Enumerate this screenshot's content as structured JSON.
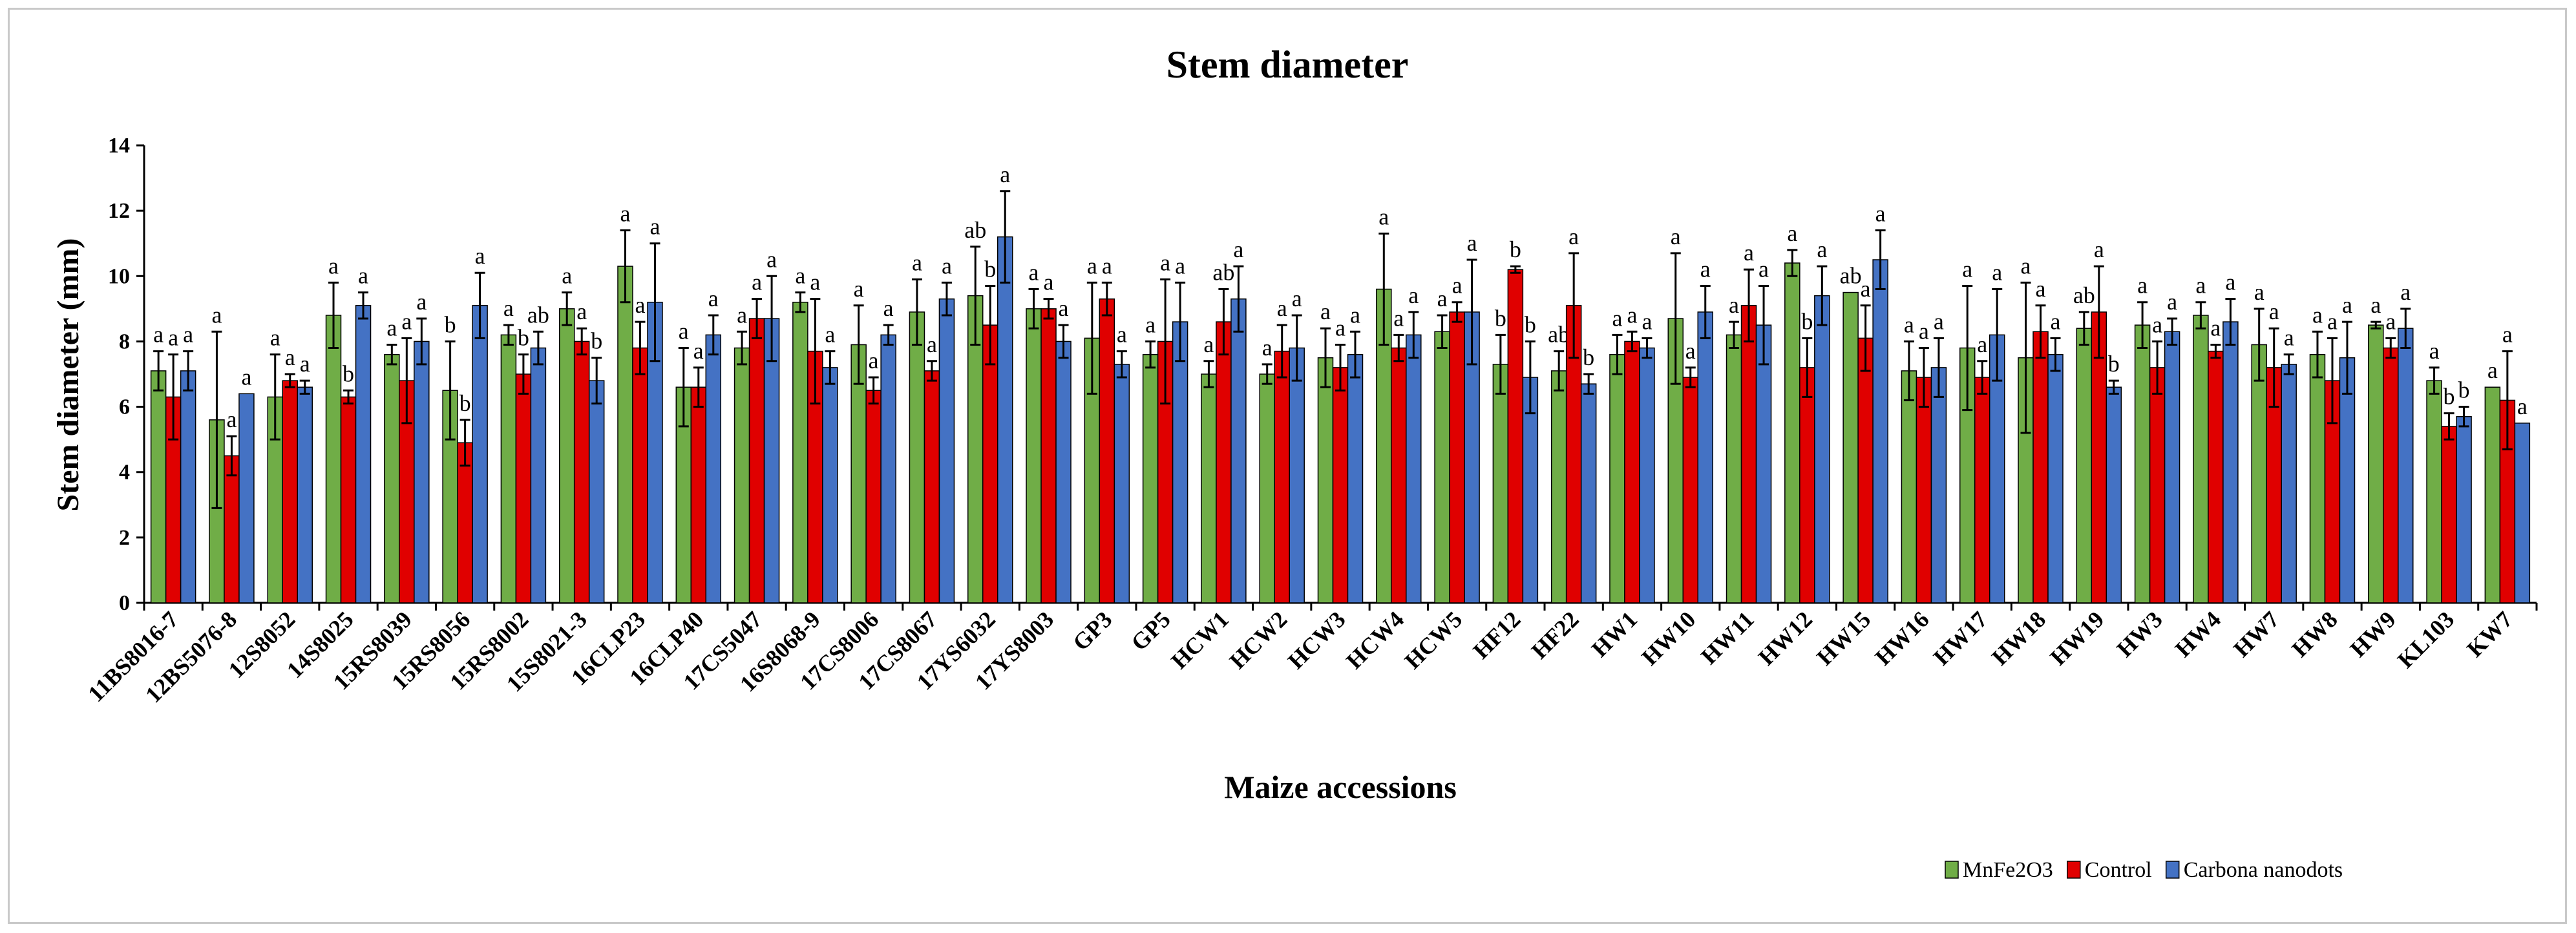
{
  "chart_data": {
    "type": "bar",
    "title": "Stem diameter",
    "xlabel": "Maize accessions",
    "ylabel": "Stem diameter (mm)",
    "ylim": [
      0,
      14
    ],
    "yticks": [
      0,
      2,
      4,
      6,
      8,
      10,
      12,
      14
    ],
    "grid": false,
    "legend_position": "bottom-right",
    "categories": [
      "11BS8016-7",
      "12BS5076-8",
      "12S8052",
      "14S8025",
      "15RS8039",
      "15RS8056",
      "15RS8002",
      "15S8021-3",
      "16CLP23",
      "16CLP40",
      "17CS5047",
      "16S8068-9",
      "17CS8006",
      "17CS8067",
      "17YS6032",
      "17YS8003",
      "GP3",
      "GP5",
      "HCW1",
      "HCW2",
      "HCW3",
      "HCW4",
      "HCW5",
      "HF12",
      "HF22",
      "HW1",
      "HW10",
      "HW11",
      "HW12",
      "HW15",
      "HW16",
      "HW17",
      "HW18",
      "HW19",
      "HW3",
      "HW4",
      "HW7",
      "HW8",
      "HW9",
      "KL103",
      "KW7"
    ],
    "series": [
      {
        "name": "MnFe2O3",
        "color": "#70ad47",
        "values": [
          7.1,
          5.6,
          6.3,
          8.8,
          7.6,
          6.5,
          8.2,
          9.0,
          10.3,
          6.6,
          7.8,
          9.2,
          7.9,
          8.9,
          9.4,
          9.0,
          8.1,
          7.6,
          7.0,
          7.0,
          7.5,
          9.6,
          8.3,
          7.3,
          7.1,
          7.6,
          8.7,
          8.2,
          10.4,
          9.5,
          7.1,
          7.8,
          7.5,
          8.4,
          8.5,
          8.8,
          7.9,
          7.6,
          8.5,
          6.8,
          6.6
        ],
        "errors": [
          0.6,
          2.7,
          1.3,
          1.0,
          0.3,
          1.5,
          0.3,
          0.5,
          1.1,
          1.2,
          0.5,
          0.3,
          1.2,
          1.0,
          1.5,
          0.6,
          1.7,
          0.4,
          0.4,
          0.3,
          0.9,
          1.7,
          0.5,
          0.9,
          0.6,
          0.6,
          2.0,
          0.4,
          0.4,
          0.0,
          0.9,
          1.9,
          2.3,
          0.5,
          0.7,
          0.4,
          1.1,
          0.7,
          0.1,
          0.4,
          0.0
        ],
        "letters": [
          "a",
          "a",
          "a",
          "a",
          "a",
          "b",
          "a",
          "a",
          "a",
          "a",
          "a",
          "a",
          "a",
          "a",
          "ab",
          "a",
          "a",
          "a",
          "a",
          "a",
          "a",
          "a",
          "a",
          "b",
          "ab",
          "a",
          "a",
          "a",
          "a",
          "ab",
          "a",
          "a",
          "a",
          "ab",
          "a",
          "a",
          "a",
          "a",
          "a",
          "a",
          "a"
        ]
      },
      {
        "name": "Control",
        "color": "#e00000",
        "values": [
          6.3,
          4.5,
          6.8,
          6.3,
          6.8,
          4.9,
          7.0,
          8.0,
          7.8,
          6.6,
          8.7,
          7.7,
          6.5,
          7.1,
          8.5,
          9.0,
          9.3,
          8.0,
          8.6,
          7.7,
          7.2,
          7.8,
          8.9,
          10.2,
          9.1,
          8.0,
          6.9,
          9.1,
          7.2,
          8.1,
          6.9,
          6.9,
          8.3,
          8.9,
          7.2,
          7.7,
          7.2,
          6.8,
          7.8,
          5.4,
          6.2
        ],
        "errors": [
          1.3,
          0.6,
          0.2,
          0.2,
          1.3,
          0.7,
          0.6,
          0.4,
          0.8,
          0.6,
          0.6,
          1.6,
          0.4,
          0.3,
          1.2,
          0.3,
          0.5,
          1.9,
          1.0,
          0.8,
          0.7,
          0.4,
          0.3,
          0.1,
          1.6,
          0.3,
          0.3,
          1.1,
          0.9,
          1.0,
          0.9,
          0.5,
          0.8,
          1.4,
          0.8,
          0.2,
          1.2,
          1.3,
          0.3,
          0.4,
          1.5
        ],
        "letters": [
          "a",
          "a",
          "a",
          "b",
          "a",
          "b",
          "b",
          "a",
          "a",
          "a",
          "a",
          "a",
          "a",
          "a",
          "b",
          "a",
          "a",
          "a",
          "ab",
          "a",
          "a",
          "a",
          "a",
          "b",
          "a",
          "a",
          "a",
          "a",
          "b",
          "a",
          "a",
          "a",
          "a",
          "a",
          "a",
          "a",
          "a",
          "a",
          "a",
          "b",
          "a"
        ]
      },
      {
        "name": "Carbona nanodots",
        "color": "#4472c4",
        "values": [
          7.1,
          6.4,
          6.6,
          9.1,
          8.0,
          9.1,
          7.8,
          6.8,
          9.2,
          8.2,
          8.7,
          7.2,
          8.2,
          9.3,
          11.2,
          8.0,
          7.3,
          8.6,
          9.3,
          7.8,
          7.6,
          8.2,
          8.9,
          6.9,
          6.7,
          7.8,
          8.9,
          8.5,
          9.4,
          10.5,
          7.2,
          8.2,
          7.6,
          6.6,
          8.3,
          8.6,
          7.3,
          7.5,
          8.4,
          5.7,
          5.5
        ],
        "errors": [
          0.6,
          0.0,
          0.2,
          0.4,
          0.7,
          1.0,
          0.5,
          0.7,
          1.8,
          0.6,
          1.3,
          0.5,
          0.3,
          0.5,
          1.4,
          0.5,
          0.4,
          1.2,
          1.0,
          1.0,
          0.7,
          0.7,
          1.6,
          1.1,
          0.3,
          0.3,
          0.8,
          1.2,
          0.9,
          0.9,
          0.9,
          1.4,
          0.5,
          0.2,
          0.4,
          0.7,
          0.3,
          1.1,
          0.6,
          0.3,
          0.0
        ],
        "letters": [
          "a",
          "a",
          "a",
          "a",
          "a",
          "a",
          "ab",
          "b",
          "a",
          "a",
          "a",
          "a",
          "a",
          "a",
          "a",
          "a",
          "a",
          "a",
          "a",
          "a",
          "a",
          "a",
          "a",
          "b",
          "b",
          "a",
          "a",
          "a",
          "a",
          "a",
          "a",
          "a",
          "a",
          "b",
          "a",
          "a",
          "a",
          "a",
          "a",
          "b",
          "a"
        ]
      }
    ]
  }
}
